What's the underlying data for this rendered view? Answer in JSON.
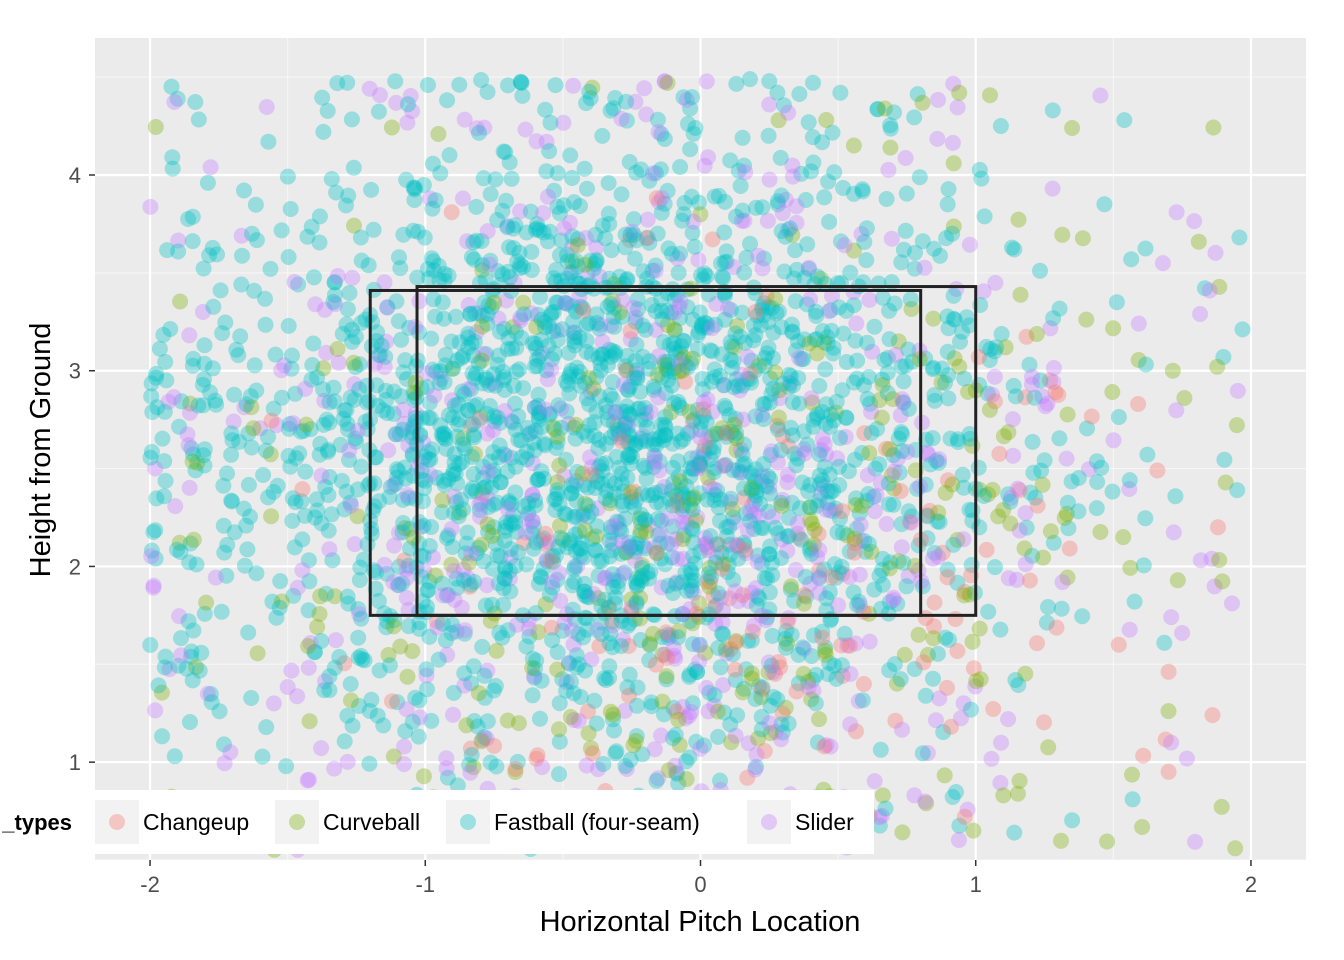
{
  "chart_data": {
    "type": "scatter",
    "title": "",
    "xlabel": "Horizontal Pitch Location",
    "ylabel": "Height from Ground",
    "xlim": [
      -2.2,
      2.2
    ],
    "ylim": [
      0.5,
      4.7
    ],
    "x_ticks": [
      -2,
      -1,
      0,
      1,
      2
    ],
    "y_ticks": [
      1,
      2,
      3,
      4
    ],
    "x_tick_labels": [
      "-2",
      "-1",
      "0",
      "1",
      "2"
    ],
    "y_tick_labels": [
      "1",
      "2",
      "3",
      "4"
    ],
    "grid": true,
    "legend": {
      "title": "_types",
      "position": "bottom-left",
      "entries": [
        "Changeup",
        "Curveball",
        "Fastball (four-seam)",
        "Slider"
      ]
    },
    "colors": {
      "Changeup": "#F8766D",
      "Curveball": "#7CAE00",
      "Fastball (four-seam)": "#00BFC4",
      "Slider": "#C77CFF",
      "panel": "#EBEBEB",
      "grid": "#FFFFFF",
      "zone": "#222222"
    },
    "point_alpha": 0.35,
    "strike_zones": [
      {
        "x": [
          -1.2,
          0.8
        ],
        "y": [
          1.75,
          3.41
        ]
      },
      {
        "x": [
          -1.03,
          1.0
        ],
        "y": [
          1.75,
          3.43
        ]
      }
    ],
    "series": [
      {
        "name": "Changeup",
        "count": 140,
        "x_center": 0.25,
        "x_spread": 0.75,
        "y_center": 1.9,
        "y_spread": 0.75,
        "sample_points": [
          [
            0.24,
            3.38
          ],
          [
            0.2,
            3.3
          ],
          [
            1.29,
            2.89
          ],
          [
            1.27,
            2.95
          ],
          [
            1.66,
            2.49
          ],
          [
            1.59,
            2.83
          ],
          [
            1.52,
            1.6
          ],
          [
            0.96,
            1.87
          ],
          [
            0.45,
            1.08
          ],
          [
            0.17,
            0.92
          ],
          [
            0.81,
            1.51
          ],
          [
            0.91,
            1.18
          ],
          [
            0.88,
            2.07
          ],
          [
            0.56,
            2.07
          ]
        ]
      },
      {
        "name": "Curveball",
        "count": 330,
        "x_center": 0.0,
        "x_spread": 0.9,
        "y_center": 2.2,
        "y_spread": 1.0,
        "sample_points": [
          [
            -0.12,
            4.47
          ],
          [
            0.94,
            4.42
          ],
          [
            1.35,
            4.24
          ],
          [
            0.67,
            4.34
          ],
          [
            0.72,
            3.15
          ],
          [
            0.65,
            2.85
          ],
          [
            1.1,
            0.83
          ],
          [
            0.82,
            0.79
          ],
          [
            -0.3,
            0.73
          ],
          [
            1.0,
            2.9
          ],
          [
            0.69,
            4.14
          ],
          [
            0.92,
            4.06
          ]
        ]
      },
      {
        "name": "Fastball (four-seam)",
        "count": 2100,
        "x_center": -0.35,
        "x_spread": 0.75,
        "y_center": 2.6,
        "y_spread": 0.85,
        "sample_points": [
          [
            -0.99,
            4.46
          ],
          [
            0.18,
            4.49
          ],
          [
            0.25,
            4.48
          ],
          [
            -1.98,
            2.04
          ],
          [
            1.95,
            2.39
          ],
          [
            -1.91,
            1.03
          ],
          [
            -1.89,
            0.74
          ],
          [
            1.14,
            0.64
          ],
          [
            1.57,
            0.81
          ],
          [
            -1.57,
            4.17
          ],
          [
            -1.37,
            4.22
          ],
          [
            1.9,
            3.07
          ],
          [
            1.28,
            4.33
          ],
          [
            -0.65,
            4.47
          ],
          [
            -1.86,
            1.72
          ]
        ]
      },
      {
        "name": "Slider",
        "count": 620,
        "x_center": -0.2,
        "x_spread": 0.85,
        "y_center": 2.4,
        "y_spread": 1.0,
        "sample_points": [
          [
            -1.78,
            4.04
          ],
          [
            -0.13,
            4.48
          ],
          [
            1.73,
            3.81
          ],
          [
            1.85,
            3.41
          ],
          [
            1.75,
            1.66
          ],
          [
            1.71,
            1.1
          ],
          [
            -1.86,
            2.62
          ],
          [
            -1.83,
            0.68
          ],
          [
            -1.55,
            1.3
          ],
          [
            0.25,
            4.36
          ],
          [
            1.68,
            3.55
          ]
        ]
      }
    ]
  }
}
